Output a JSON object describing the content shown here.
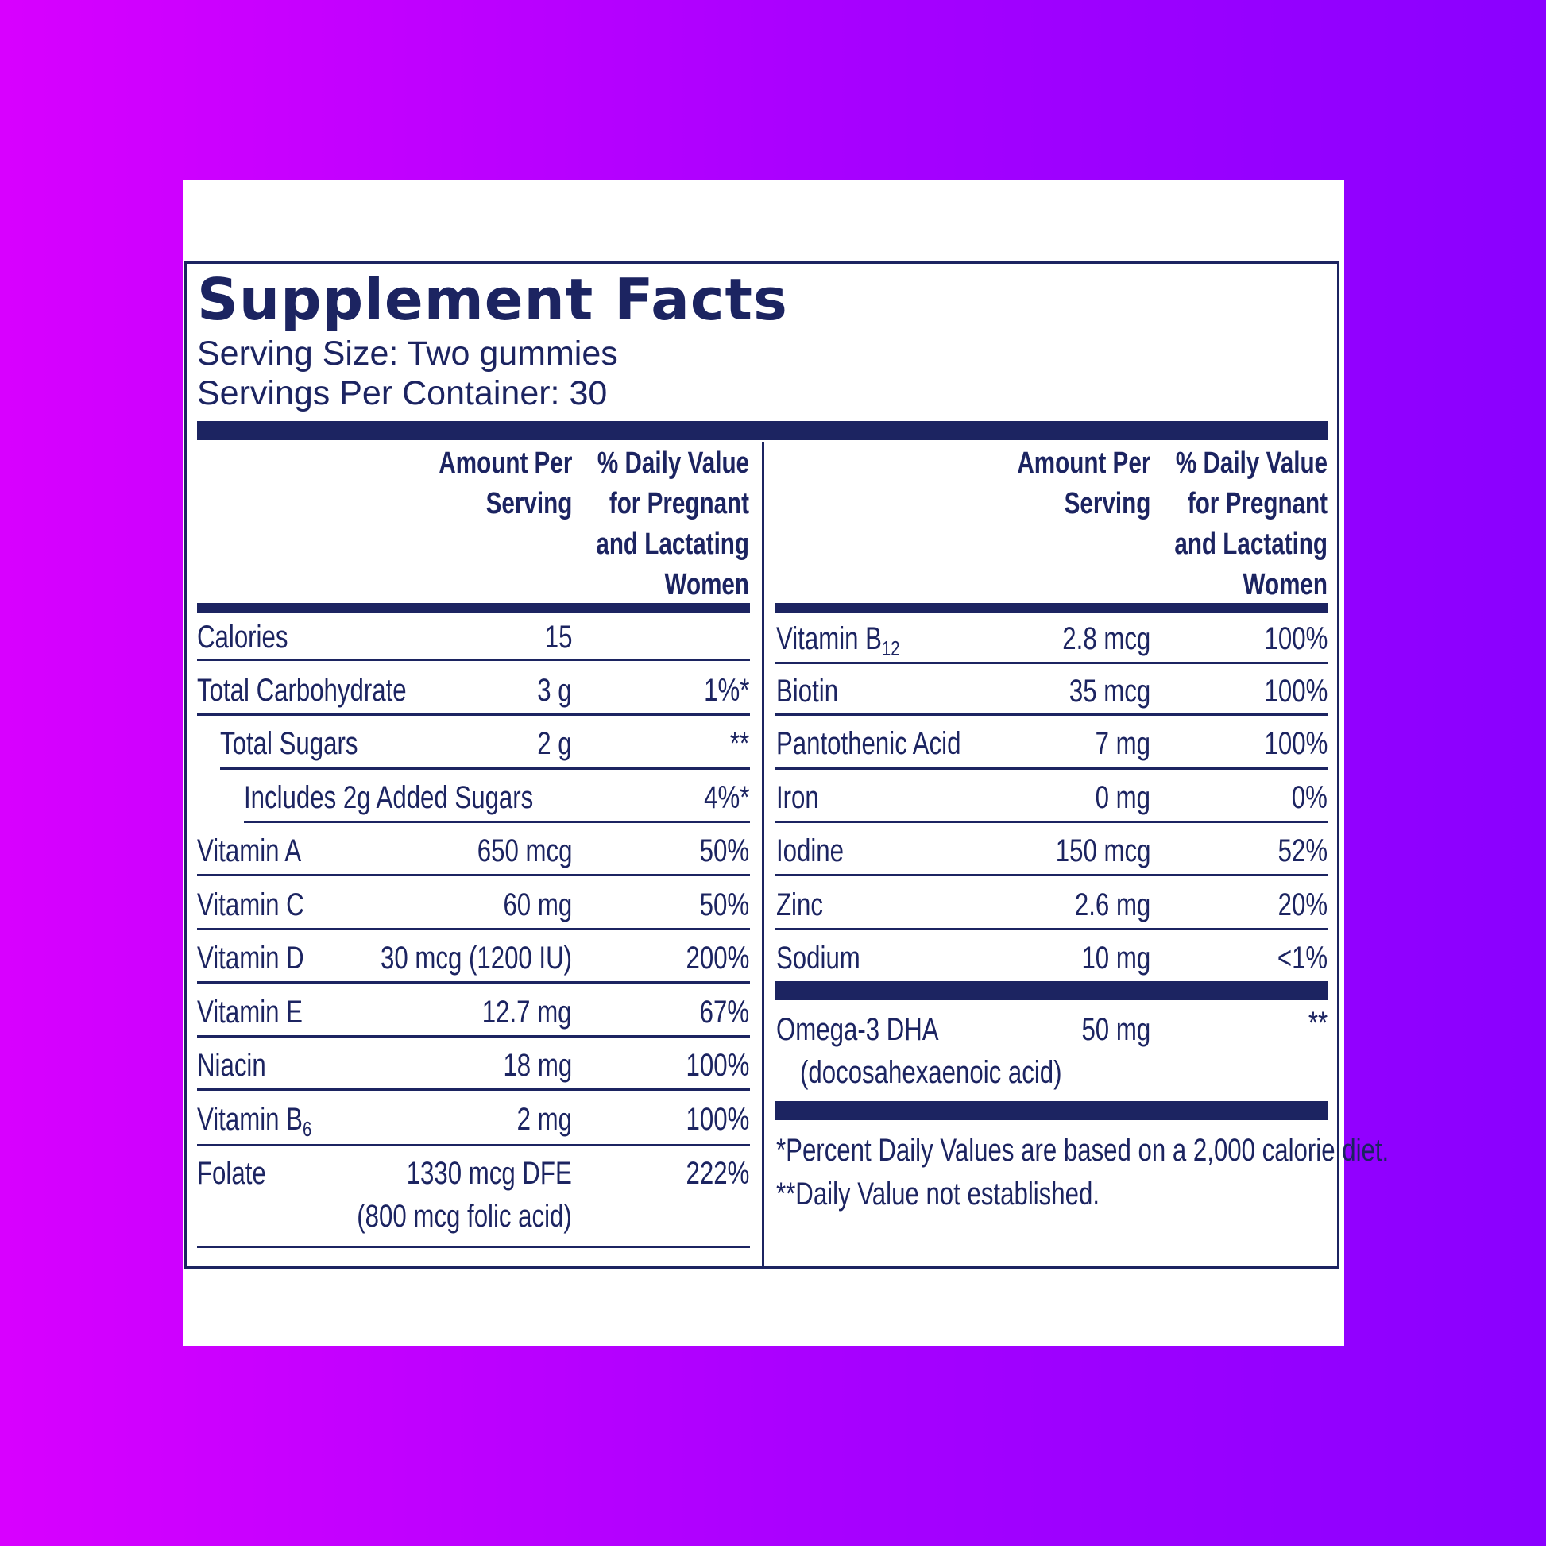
{
  "title": "Supplement Facts",
  "serving_size": "Serving Size: Two gummies",
  "servings_per_container": "Servings Per Container: 30",
  "headers": {
    "amount": "Amount Per\nServing",
    "dv": "% Daily Value\nfor Pregnant\nand Lactating\nWomen"
  },
  "left_rows": [
    {
      "name": "Calories",
      "amount": "15",
      "dv": ""
    },
    {
      "name": "Total Carbohydrate",
      "amount": "3 g",
      "dv": "1%*"
    },
    {
      "name": "Total Sugars",
      "amount": "2 g",
      "dv": "**"
    },
    {
      "name": "Includes 2g Added Sugars",
      "amount": "",
      "dv": "4%*"
    },
    {
      "name": "Vitamin A",
      "amount": "650 mcg",
      "dv": "50%"
    },
    {
      "name": "Vitamin C",
      "amount": "60 mg",
      "dv": "50%"
    },
    {
      "name": "Vitamin D",
      "amount": "30 mcg (1200 IU)",
      "dv": "200%"
    },
    {
      "name": "Vitamin E",
      "amount": "12.7 mg",
      "dv": "67%"
    },
    {
      "name": "Niacin",
      "amount": "18 mg",
      "dv": "100%"
    },
    {
      "name": "Vitamin B",
      "sub": "6",
      "amount": "2 mg",
      "dv": "100%"
    },
    {
      "name": "Folate",
      "amount": "1330 mcg DFE",
      "amount2": "(800 mcg folic acid)",
      "dv": "222%"
    }
  ],
  "right_rows": [
    {
      "name": "Vitamin B",
      "sub": "12",
      "amount": "2.8 mcg",
      "dv": "100%"
    },
    {
      "name": "Biotin",
      "amount": "35 mcg",
      "dv": "100%"
    },
    {
      "name": "Pantothenic Acid",
      "amount": "7 mg",
      "dv": "100%"
    },
    {
      "name": "Iron",
      "amount": "0 mg",
      "dv": "0%"
    },
    {
      "name": "Iodine",
      "amount": "150 mcg",
      "dv": "52%"
    },
    {
      "name": "Zinc",
      "amount": "2.6 mg",
      "dv": "20%"
    },
    {
      "name": "Sodium",
      "amount": "10 mg",
      "dv": "<1%"
    }
  ],
  "omega": {
    "name": "Omega-3 DHA",
    "name2": "(docosahexaenoic acid)",
    "amount": "50 mg",
    "dv": "**"
  },
  "footnotes": [
    "*Percent Daily Values are based on a 2,000 calorie diet.",
    "**Daily Value not established."
  ],
  "colors": {
    "ink": "#1c2461",
    "background_left": "#d800ff",
    "background_right": "#8a00ff",
    "card": "#ffffff"
  }
}
